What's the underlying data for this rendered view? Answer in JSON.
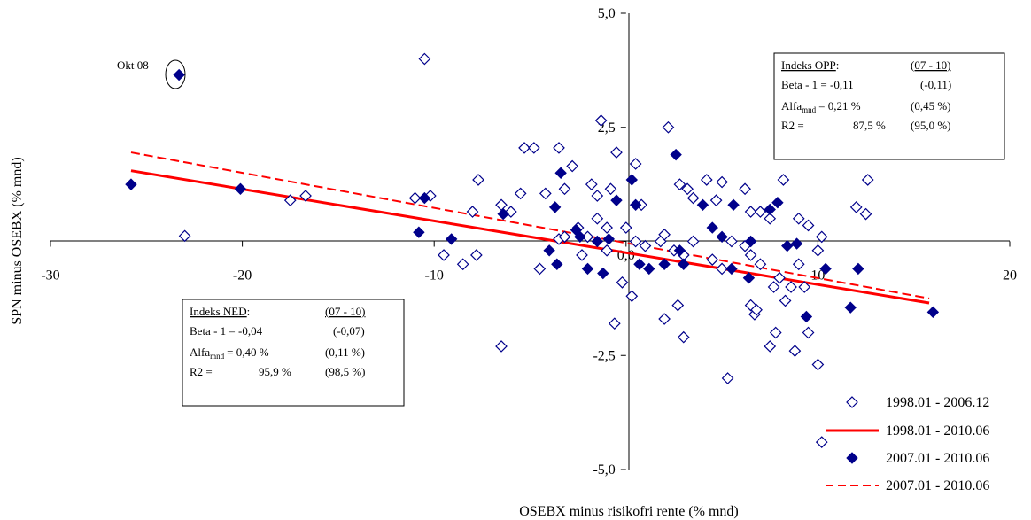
{
  "chart_data": {
    "type": "scatter",
    "xlabel": "OSEBX minus risikofri rente (% mnd)",
    "ylabel": "SPN minus OSEBX (% mnd)",
    "xlim": [
      -30,
      20
    ],
    "ylim": [
      -5,
      5
    ],
    "x_ticks": [
      -30,
      -20,
      -10,
      0,
      10,
      20
    ],
    "x_tick_labels": [
      "-30",
      "-20",
      "-10",
      "0",
      "10",
      "20"
    ],
    "y_ticks": [
      5,
      2.5,
      -2.5,
      -5
    ],
    "y_tick_labels": [
      "5,0",
      "2,5",
      "-2,5",
      "-5,0"
    ],
    "zero_label": "0,0",
    "annotation": {
      "text": "Okt 08",
      "x": -23.3,
      "y": 3.65
    },
    "legend_position": "bottom-right",
    "series": [
      {
        "name": "1998.01 - 2006.12",
        "kind": "points",
        "marker": "diamond-open",
        "color": "#00008B",
        "points": [
          [
            -10.5,
            4.0
          ],
          [
            -23.0,
            0.12
          ],
          [
            -17.5,
            0.9
          ],
          [
            -16.7,
            1.0
          ],
          [
            -11.0,
            0.95
          ],
          [
            -10.2,
            1.0
          ],
          [
            -8.0,
            0.65
          ],
          [
            -7.7,
            1.35
          ],
          [
            -6.5,
            0.8
          ],
          [
            -6.0,
            0.65
          ],
          [
            -5.5,
            1.05
          ],
          [
            -5.3,
            2.05
          ],
          [
            -4.8,
            2.05
          ],
          [
            -4.2,
            1.05
          ],
          [
            -3.5,
            2.05
          ],
          [
            -3.2,
            1.15
          ],
          [
            -2.8,
            1.65
          ],
          [
            -1.8,
            1.25
          ],
          [
            -1.5,
            1.0
          ],
          [
            -1.3,
            2.65
          ],
          [
            -0.8,
            1.15
          ],
          [
            -0.5,
            1.95
          ],
          [
            0.5,
            1.7
          ],
          [
            2.2,
            2.5
          ],
          [
            2.8,
            1.25
          ],
          [
            3.2,
            1.15
          ],
          [
            3.5,
            0.95
          ],
          [
            4.2,
            1.35
          ],
          [
            4.7,
            0.9
          ],
          [
            5.0,
            1.3
          ],
          [
            6.2,
            1.15
          ],
          [
            6.5,
            0.65
          ],
          [
            7.0,
            0.65
          ],
          [
            8.2,
            1.35
          ],
          [
            9.0,
            0.5
          ],
          [
            9.5,
            0.35
          ],
          [
            10.2,
            0.1
          ],
          [
            12.0,
            0.75
          ],
          [
            12.5,
            0.6
          ],
          [
            12.6,
            1.35
          ],
          [
            -2.5,
            0.3
          ],
          [
            -2.0,
            0.1
          ],
          [
            -1.5,
            0.5
          ],
          [
            -1.0,
            0.3
          ],
          [
            0.0,
            0.3
          ],
          [
            0.5,
            0.0
          ],
          [
            1.0,
            -0.1
          ],
          [
            1.8,
            0.0
          ],
          [
            2.0,
            0.15
          ],
          [
            2.5,
            -0.2
          ],
          [
            3.0,
            -0.3
          ],
          [
            3.5,
            0.0
          ],
          [
            4.5,
            -0.4
          ],
          [
            5.0,
            -0.6
          ],
          [
            5.5,
            0.0
          ],
          [
            6.2,
            -0.1
          ],
          [
            6.5,
            -0.3
          ],
          [
            7.0,
            -0.5
          ],
          [
            7.5,
            0.5
          ],
          [
            7.7,
            -1.0
          ],
          [
            8.0,
            -0.8
          ],
          [
            8.3,
            -1.3
          ],
          [
            8.6,
            -1.0
          ],
          [
            9.0,
            -0.5
          ],
          [
            9.3,
            -1.0
          ],
          [
            10.0,
            -0.2
          ],
          [
            2.0,
            -1.7
          ],
          [
            2.7,
            -1.4
          ],
          [
            3.0,
            -2.1
          ],
          [
            6.5,
            -1.4
          ],
          [
            6.7,
            -1.6
          ],
          [
            6.8,
            -1.5
          ],
          [
            7.5,
            -2.3
          ],
          [
            7.8,
            -2.0
          ],
          [
            8.8,
            -2.4
          ],
          [
            9.5,
            -2.0
          ],
          [
            10.0,
            -2.7
          ],
          [
            10.2,
            -4.4
          ],
          [
            5.3,
            -3.0
          ],
          [
            -6.5,
            -2.3
          ],
          [
            -0.6,
            -1.8
          ],
          [
            -9.5,
            -0.3
          ],
          [
            -8.5,
            -0.5
          ],
          [
            -7.8,
            -0.3
          ],
          [
            -4.5,
            -0.6
          ],
          [
            -3.5,
            0.05
          ],
          [
            -3.2,
            0.1
          ],
          [
            -2.3,
            -0.3
          ],
          [
            -1.0,
            -0.2
          ],
          [
            -0.2,
            -0.9
          ],
          [
            0.3,
            -1.2
          ],
          [
            0.8,
            0.8
          ]
        ]
      },
      {
        "name": "1998.01 - 2010.06",
        "kind": "line",
        "style": "solid",
        "color": "#FF0000",
        "points": [
          [
            -25.8,
            1.55
          ],
          [
            15.8,
            -1.35
          ]
        ]
      },
      {
        "name": "2007.01 - 2010.06",
        "kind": "points",
        "marker": "diamond-filled",
        "color": "#00008B",
        "points": [
          [
            -23.3,
            3.65
          ],
          [
            -25.8,
            1.25
          ],
          [
            -20.1,
            1.15
          ],
          [
            -10.5,
            0.95
          ],
          [
            -10.8,
            0.2
          ],
          [
            -9.1,
            0.05
          ],
          [
            -6.4,
            0.6
          ],
          [
            -3.4,
            1.5
          ],
          [
            -3.7,
            0.75
          ],
          [
            -3.6,
            -0.5
          ],
          [
            -4.0,
            -0.2
          ],
          [
            -2.4,
            0.1
          ],
          [
            -2.0,
            -0.6
          ],
          [
            -2.6,
            0.25
          ],
          [
            -1.5,
            0.0
          ],
          [
            -1.2,
            -0.7
          ],
          [
            -0.9,
            0.05
          ],
          [
            -0.5,
            0.9
          ],
          [
            0.5,
            0.8
          ],
          [
            0.3,
            1.35
          ],
          [
            0.7,
            -0.5
          ],
          [
            1.2,
            -0.6
          ],
          [
            2.0,
            -0.5
          ],
          [
            2.6,
            1.9
          ],
          [
            2.8,
            -0.2
          ],
          [
            3.0,
            -0.5
          ],
          [
            4.0,
            0.8
          ],
          [
            4.5,
            0.3
          ],
          [
            5.0,
            0.1
          ],
          [
            5.6,
            0.8
          ],
          [
            5.5,
            -0.6
          ],
          [
            6.4,
            -0.8
          ],
          [
            6.5,
            0.0
          ],
          [
            7.5,
            0.7
          ],
          [
            7.9,
            0.85
          ],
          [
            8.4,
            -0.1
          ],
          [
            8.9,
            -0.05
          ],
          [
            9.4,
            -1.65
          ],
          [
            10.4,
            -0.6
          ],
          [
            11.7,
            -1.45
          ],
          [
            12.1,
            -0.6
          ],
          [
            16.0,
            -1.55
          ]
        ]
      },
      {
        "name": "2007.01 - 2010.06",
        "kind": "line",
        "style": "dashed",
        "color": "#FF0000",
        "points": [
          [
            -25.8,
            1.95
          ],
          [
            15.8,
            -1.25
          ]
        ]
      }
    ]
  },
  "box_opp": {
    "title": "Indeks OPP",
    "title_suffix": ":",
    "period": "(07 - 10)",
    "beta_label": "Beta - 1 = -0,11",
    "beta_period": "(-0,11)",
    "alfa_label": "Alfa",
    "alfa_sub": "mnd",
    "alfa_value": "= 0,21 %",
    "alfa_period": "(0,45 %)",
    "r2_label": "R2 =",
    "r2_value": "87,5 %",
    "r2_period": "(95,0 %)"
  },
  "box_ned": {
    "title": "Indeks NED",
    "title_suffix": ":",
    "period": "(07 - 10)",
    "beta_label": "Beta - 1 = -0,04",
    "beta_period": "(-0,07)",
    "alfa_label": "Alfa",
    "alfa_sub": "mnd",
    "alfa_value": "= 0,40 %",
    "alfa_period": "(0,11 %)",
    "r2_label": "R2 =",
    "r2_value": "95,9 %",
    "r2_period": "(98,5 %)"
  }
}
